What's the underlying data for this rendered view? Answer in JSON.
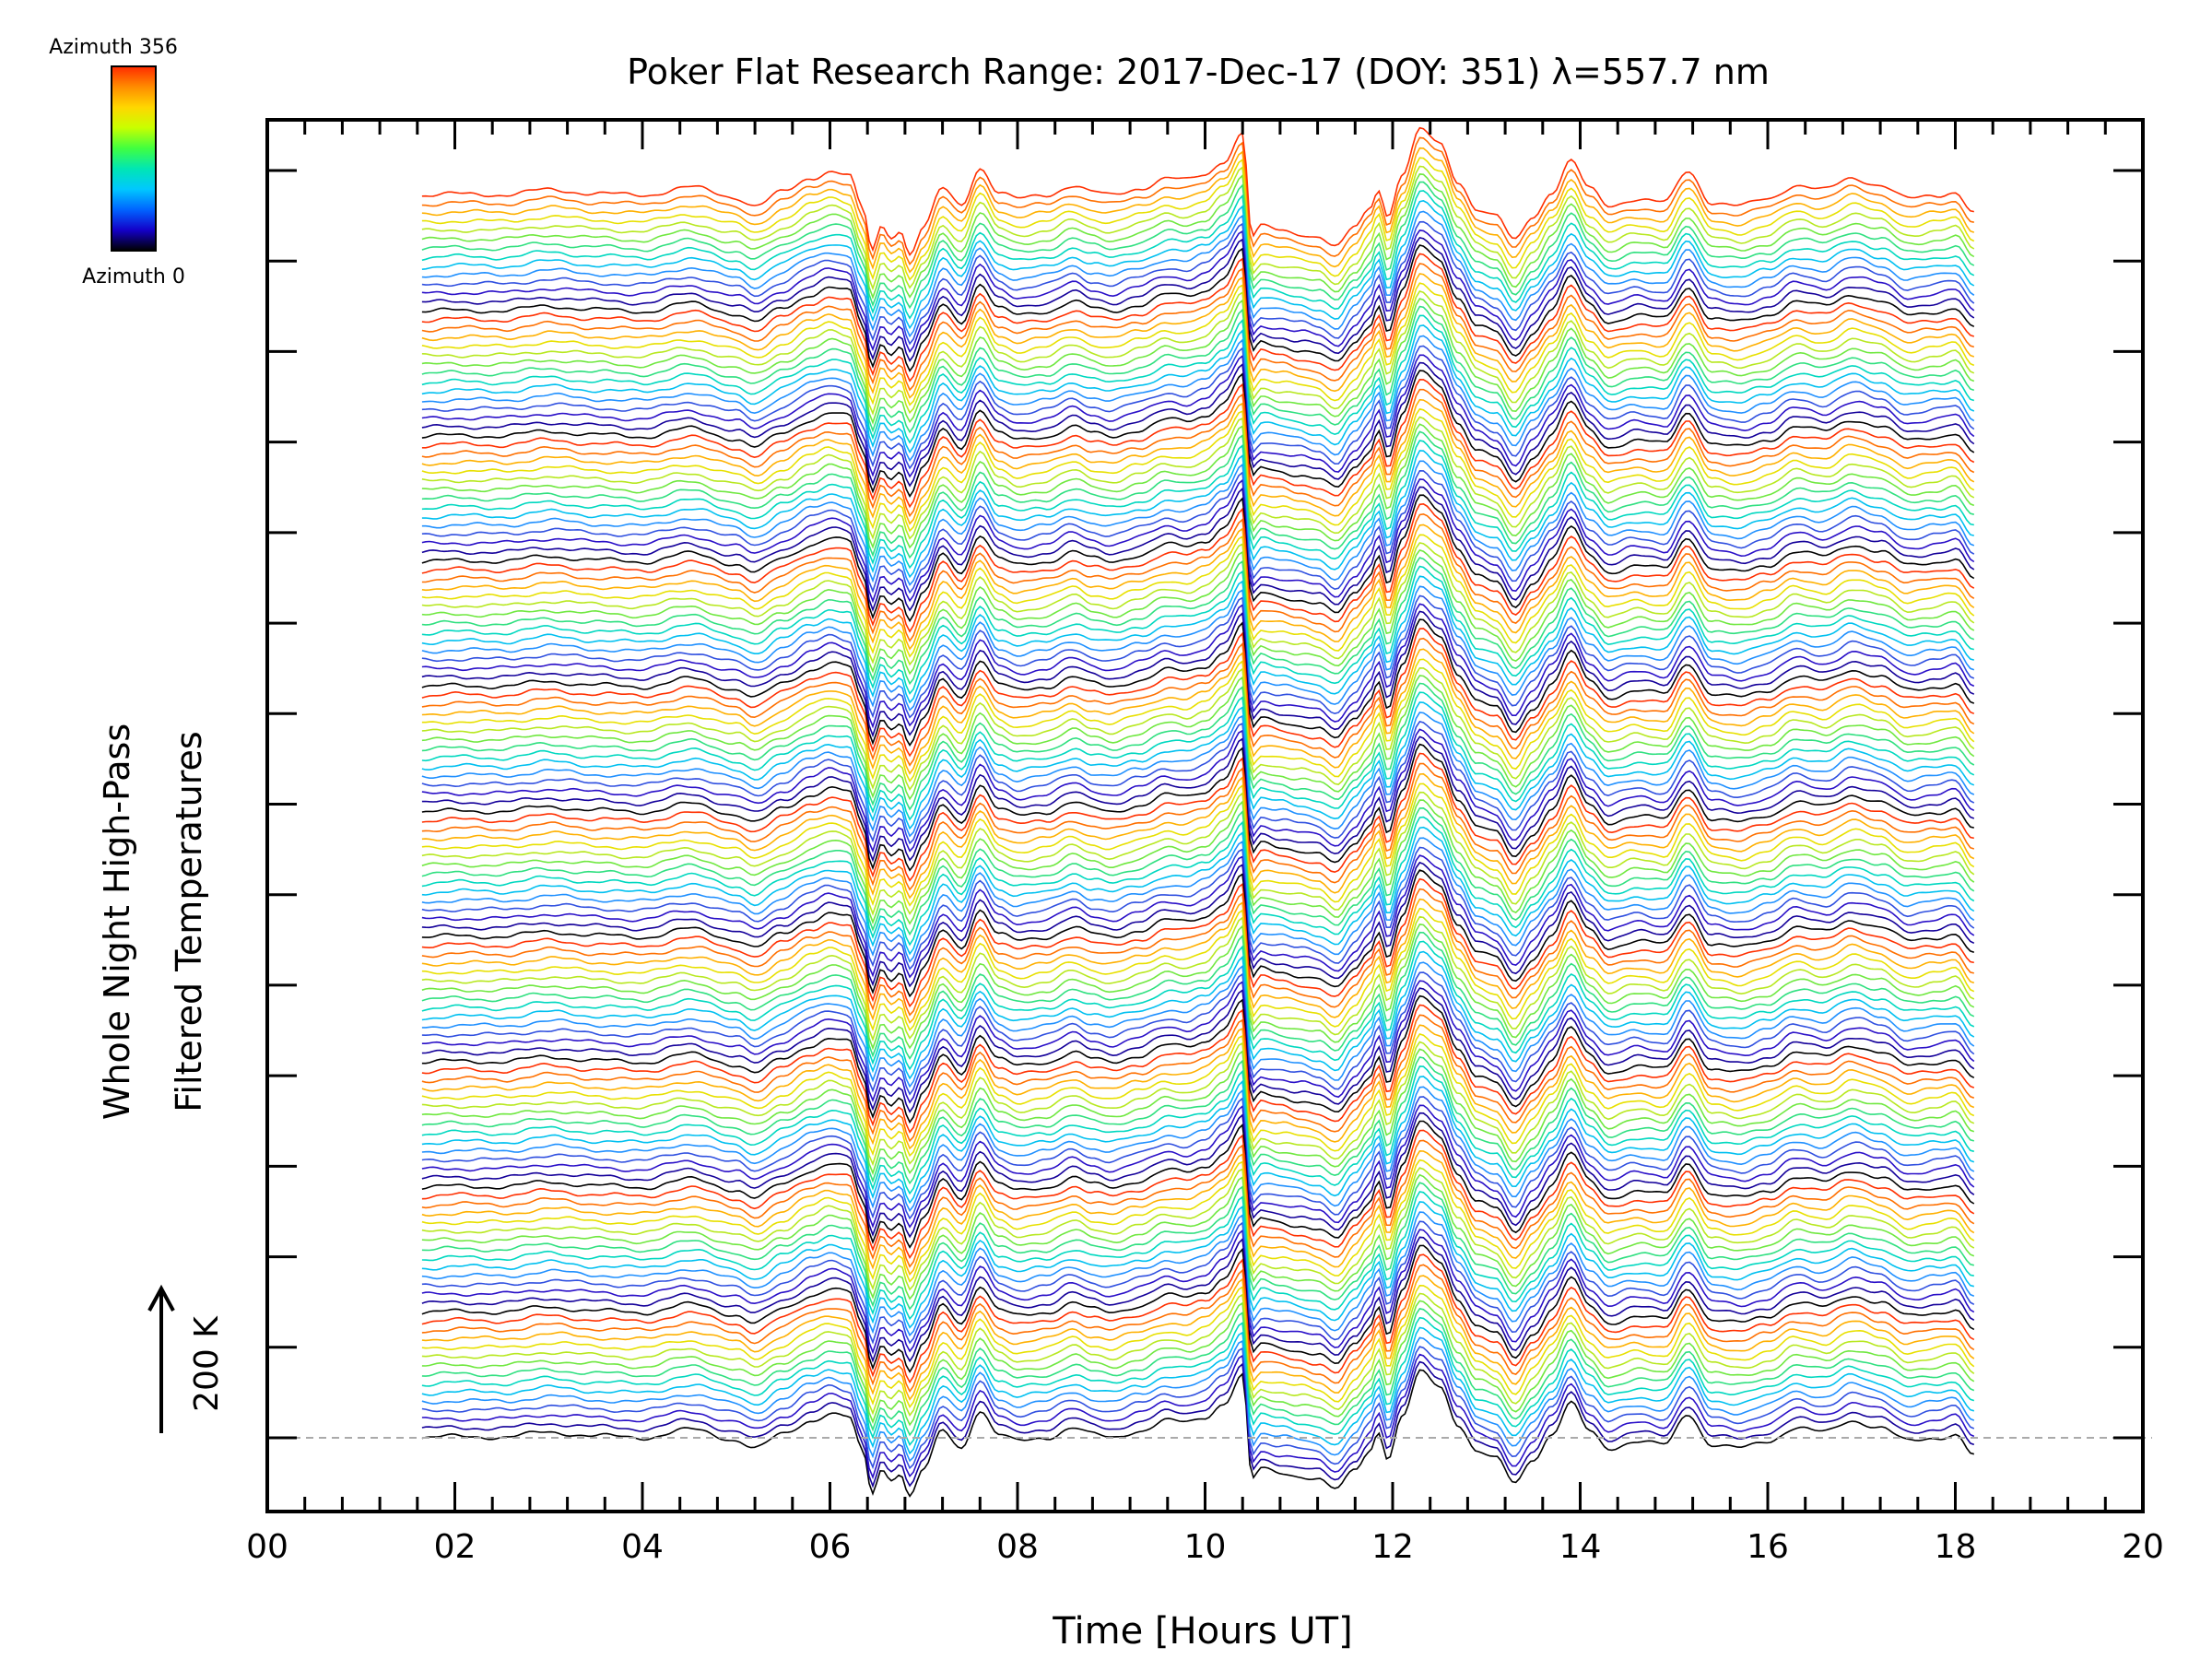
{
  "chart_data": {
    "type": "line",
    "title": "Poker Flat Research Range: 2017-Dec-17 (DOY: 351) λ=557.7 nm",
    "xlabel": "Time [Hours UT]",
    "ylabel_line1": "Whole Night High-Pass",
    "ylabel_line2": "Filtered Temperatures",
    "scale_label": "200 K",
    "xlim": [
      0,
      20
    ],
    "x_tick_labels": [
      "00",
      "02",
      "04",
      "06",
      "08",
      "10",
      "12",
      "14",
      "16",
      "18",
      "20"
    ],
    "x_start": 1.65,
    "x_end": 18.2,
    "grid": false,
    "colorbar": {
      "top_label": "Azimuth 356",
      "bottom_label": "Azimuth 0",
      "colors": [
        "#ff2a00",
        "#ff8c00",
        "#ffd700",
        "#c8ff00",
        "#40ff40",
        "#00e6b4",
        "#00c8ff",
        "#0064ff",
        "#1400c8",
        "#000000"
      ]
    },
    "series_count": 140,
    "series_colors": [
      "#000000",
      "#14009a",
      "#2a10c8",
      "#3050e0",
      "#2090ff",
      "#00c0f0",
      "#00d8c0",
      "#30e080",
      "#70e840",
      "#b8e820",
      "#e8e000",
      "#ffb000",
      "#ff7000",
      "#ff3000"
    ],
    "base_profile": {
      "x": [
        1.65,
        2.0,
        2.5,
        3.0,
        3.5,
        4.0,
        4.5,
        5.0,
        5.2,
        5.5,
        5.8,
        6.0,
        6.2,
        6.35,
        6.45,
        6.55,
        6.65,
        6.75,
        6.85,
        7.0,
        7.2,
        7.4,
        7.6,
        7.8,
        8.0,
        8.3,
        8.6,
        8.8,
        9.0,
        9.3,
        9.6,
        9.8,
        10.0,
        10.2,
        10.4,
        10.5,
        10.6,
        10.8,
        11.0,
        11.2,
        11.4,
        11.6,
        11.75,
        11.85,
        11.95,
        12.1,
        12.3,
        12.5,
        12.7,
        12.9,
        13.1,
        13.3,
        13.5,
        13.7,
        13.9,
        14.1,
        14.3,
        14.6,
        14.9,
        15.15,
        15.4,
        15.7,
        16.0,
        16.3,
        16.6,
        16.9,
        17.2,
        17.5,
        17.8,
        18.0,
        18.2
      ],
      "y": [
        0,
        2,
        1,
        8,
        3,
        0,
        12,
        -3,
        -15,
        5,
        25,
        35,
        30,
        -20,
        -80,
        -45,
        -60,
        -50,
        -85,
        -45,
        10,
        -15,
        40,
        5,
        -5,
        0,
        15,
        5,
        0,
        10,
        25,
        22,
        30,
        50,
        90,
        -60,
        -45,
        -50,
        -55,
        -60,
        -75,
        -45,
        -20,
        10,
        -30,
        30,
        95,
        75,
        20,
        -20,
        -30,
        -65,
        -30,
        5,
        50,
        10,
        -15,
        -5,
        -10,
        35,
        -10,
        -15,
        -5,
        15,
        8,
        25,
        15,
        -5,
        0,
        5,
        -25
      ]
    }
  }
}
